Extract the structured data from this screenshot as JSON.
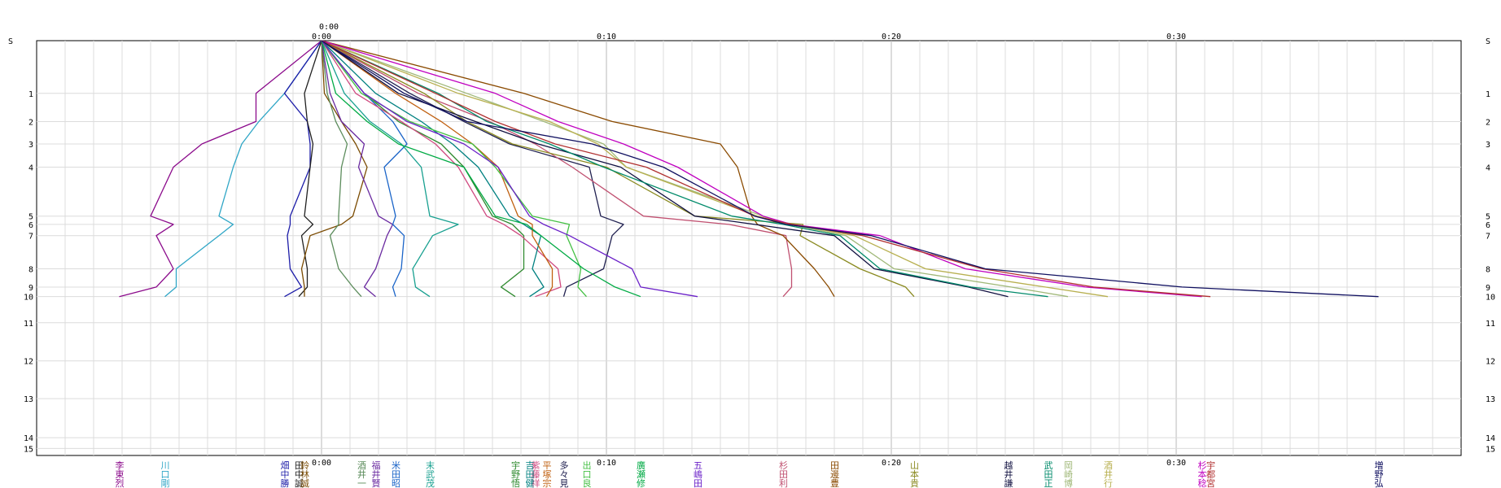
{
  "chart_data": {
    "type": "line",
    "title": "",
    "xlabel": "",
    "ylabel": "",
    "x_axis": {
      "label_top": "0:00",
      "ticks": [
        "0:00",
        "0:10",
        "0:20",
        "0:30"
      ],
      "range": [
        -10,
        40
      ]
    },
    "y_axis": {
      "start_label": "S",
      "ticks": [
        "1",
        "2",
        "3",
        "4",
        "5",
        "6",
        "7",
        "8",
        "9",
        "10",
        "11",
        "12",
        "13",
        "14",
        "15"
      ],
      "station_fractions": [
        0.0,
        0.127,
        0.195,
        0.249,
        0.305,
        0.423,
        0.443,
        0.47,
        0.55,
        0.594,
        0.617,
        0.68,
        0.772,
        0.863,
        0.957,
        0.983
      ],
      "range": [
        0,
        1
      ]
    },
    "grid": true,
    "series": [
      {
        "name": "李東烈",
        "color": "#8b0a8b",
        "x": [
          0,
          -2.3,
          -2.3,
          -4.2,
          -5.2,
          -6,
          -5.2,
          -5.8,
          -5.2,
          -5.8,
          -7.1
        ]
      },
      {
        "name": "川口剛",
        "color": "#2fa6c6",
        "x": [
          0,
          -1.3,
          -2.2,
          -2.8,
          -3.1,
          -3.6,
          -3.1,
          -3.6,
          -5.1,
          -5.1,
          -5.5
        ]
      },
      {
        "name": "畑中勝",
        "color": "#1c1ca8",
        "x": [
          0,
          -1.3,
          -0.5,
          -0.4,
          -0.4,
          -1.1,
          -1.1,
          -1.2,
          -1.1,
          -0.7,
          -1.3
        ]
      },
      {
        "name": "田中誠",
        "color": "#202020",
        "x": [
          0,
          -0.6,
          -0.5,
          -0.3,
          -0.4,
          -0.6,
          -0.3,
          -0.7,
          -0.5,
          -0.5,
          -0.8
        ]
      },
      {
        "name": "鈴林誠",
        "color": "#7a4a00",
        "x": [
          0,
          0.1,
          0.7,
          1.2,
          1.6,
          1.1,
          0.7,
          -0.4,
          -0.7,
          -0.6,
          -0.6
        ]
      },
      {
        "name": "酒井一",
        "color": "#5c8c5c",
        "x": [
          0,
          0.2,
          0.5,
          0.9,
          0.7,
          0.6,
          0.6,
          0.3,
          0.6,
          1.1,
          1.4
        ]
      },
      {
        "name": "福井賢",
        "color": "#6a2aa0",
        "x": [
          0,
          0.3,
          0.7,
          1.5,
          1.3,
          2,
          2.5,
          2.3,
          1.9,
          1.5,
          1.9
        ]
      },
      {
        "name": "米田昭",
        "color": "#1a64c8",
        "x": [
          0,
          1.5,
          2.5,
          3,
          2.2,
          2.6,
          2.5,
          2.9,
          2.8,
          2.5,
          2.6
        ]
      },
      {
        "name": "末武茂",
        "color": "#18a090",
        "x": [
          0,
          0.8,
          1.7,
          2.8,
          3.5,
          3.8,
          4.8,
          3.9,
          3.2,
          3.3,
          3.8
        ]
      },
      {
        "name": "宇野悟",
        "color": "#2f8a2f",
        "x": [
          0,
          1.5,
          2.7,
          4.2,
          5,
          6,
          6.7,
          7.1,
          7.1,
          6.3,
          6.8
        ]
      },
      {
        "name": "紫藤祥",
        "color": "#d04a80",
        "x": [
          0,
          1.2,
          2.8,
          4,
          4.8,
          5.8,
          6.4,
          7,
          8.3,
          8.4,
          7.5
        ]
      },
      {
        "name": "吉田健",
        "color": "#008080",
        "x": [
          0,
          1.9,
          3.5,
          4.6,
          5.5,
          6.6,
          7.1,
          7.7,
          7.4,
          7.8,
          7.3
        ]
      },
      {
        "name": "平塚宗",
        "color": "#c06010",
        "x": [
          0,
          2.6,
          4.2,
          5.3,
          6.2,
          6.9,
          7.4,
          7.4,
          8.1,
          8.1,
          7.9
        ]
      },
      {
        "name": "多々見",
        "color": "#202050",
        "x": [
          0,
          3.1,
          5,
          6.6,
          9.4,
          9.8,
          10.6,
          10.2,
          9.9,
          8.6,
          8.5
        ]
      },
      {
        "name": "出口良",
        "color": "#44c044",
        "x": [
          0,
          1.4,
          3.1,
          5.3,
          6.1,
          7.4,
          8.7,
          8.6,
          9.1,
          9,
          9.3
        ]
      },
      {
        "name": "廣瀬修",
        "color": "#00aa44",
        "x": [
          0,
          0.5,
          1.6,
          2.7,
          5,
          6.1,
          7.2,
          7.7,
          9.2,
          10.3,
          11.2
        ]
      },
      {
        "name": "五嶋田",
        "color": "#6a20c8",
        "x": [
          0,
          1.5,
          3,
          5,
          6.2,
          7.3,
          7.8,
          8.7,
          10.9,
          11.2,
          13.2
        ]
      },
      {
        "name": "杉田利",
        "color": "#c05070",
        "x": [
          0,
          3.4,
          5.9,
          7.5,
          8.8,
          11.3,
          14.3,
          16.3,
          16.5,
          16.5,
          16.2
        ]
      },
      {
        "name": "田邊豊",
        "color": "#8a4a00",
        "x": [
          0,
          7.1,
          10.2,
          14,
          14.6,
          15.1,
          15.3,
          16.2,
          17.3,
          17.8,
          18
        ]
      },
      {
        "name": "山本貴",
        "color": "#8a8a20",
        "x": [
          0,
          3.6,
          5.1,
          6.7,
          10,
          13.1,
          16.9,
          16.8,
          18.9,
          20.5,
          20.8
        ]
      },
      {
        "name": "越井謙",
        "color": "#101040",
        "x": [
          0,
          2.7,
          5.4,
          7.6,
          10.5,
          13.1,
          15.2,
          18,
          19.4,
          22.7,
          24.1
        ]
      },
      {
        "name": "武田正",
        "color": "#008a6a",
        "x": [
          0,
          4.1,
          5.8,
          8,
          9.9,
          14.4,
          16.2,
          18.2,
          19.6,
          22.8,
          25.5
        ]
      },
      {
        "name": "岡崎博",
        "color": "#a0b878",
        "x": [
          0,
          5.1,
          7.8,
          9.9,
          10.7,
          15.5,
          16.4,
          18.4,
          20.1,
          24.2,
          26.2
        ]
      },
      {
        "name": "酒井行",
        "color": "#b8b050",
        "x": [
          0,
          4.8,
          8,
          9.7,
          10.7,
          15.3,
          16.5,
          18.7,
          21.2,
          25.4,
          27.6
        ]
      },
      {
        "name": "杉本稔",
        "color": "#c000c0",
        "x": [
          0,
          6.1,
          8.3,
          10.6,
          12.5,
          15.5,
          16.5,
          19.6,
          22.6,
          26.8,
          30.9
        ]
      },
      {
        "name": "宇都宮",
        "color": "#b03030",
        "x": [
          0,
          4,
          6.1,
          8.2,
          11.4,
          15.2,
          16.5,
          19,
          23.2,
          27.1,
          31.2
        ]
      },
      {
        "name": "増野弘",
        "color": "#101060",
        "x": [
          0,
          2.9,
          5.1,
          9.5,
          12,
          15.2,
          16.3,
          19.3,
          23.3,
          30.2,
          37.1
        ]
      }
    ]
  }
}
